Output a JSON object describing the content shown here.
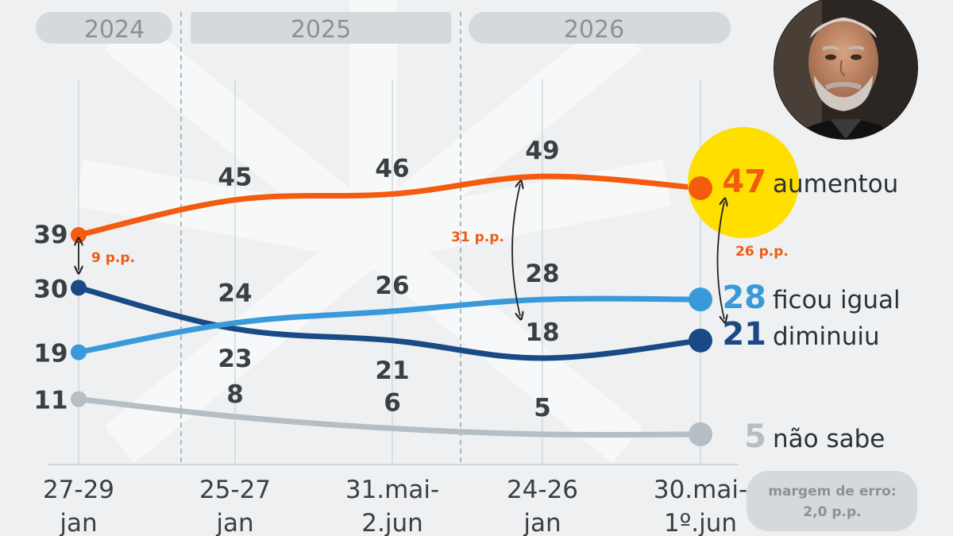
{
  "years": [
    "2024",
    "2025",
    "2026"
  ],
  "margin_note": {
    "line1": "margem de erro:",
    "line2": "2,0 p.p."
  },
  "colors": {
    "aumentou": "#f35b0f",
    "ficou_igual": "#3a9ad9",
    "diminuiu": "#1a4a86",
    "nao_sabe": "#b5bec4",
    "highlight": "#ffdf00",
    "pill": "#d4d9dc",
    "background": "#eef0f1"
  },
  "annotations": [
    {
      "text": "9 p.p.",
      "between": [
        "aumentou",
        "diminuiu"
      ],
      "at": "27-29 jan"
    },
    {
      "text": "31 p.p.",
      "between": [
        "aumentou",
        "diminuiu"
      ],
      "at": "24-26 jan"
    },
    {
      "text": "26 p.p.",
      "between": [
        "aumentou",
        "diminuiu"
      ],
      "at": "30.mai-1º.jun"
    }
  ],
  "photo": {
    "icon": "person-photo"
  },
  "chart_data": {
    "type": "line",
    "categories": [
      {
        "line1": "27-29",
        "line2": "jan",
        "year": "2024"
      },
      {
        "line1": "25-27",
        "line2": "jan",
        "year": "2025"
      },
      {
        "line1": "31.mai-",
        "line2": "2.jun",
        "year": "2025"
      },
      {
        "line1": "24-26",
        "line2": "jan",
        "year": "2026"
      },
      {
        "line1": "30.mai-",
        "line2": "1º.jun",
        "year": "2026"
      }
    ],
    "series": [
      {
        "key": "aumentou",
        "name": "aumentou",
        "values": [
          39,
          45,
          46,
          49,
          47
        ]
      },
      {
        "key": "ficou_igual",
        "name": "ficou igual",
        "values": [
          19,
          24,
          26,
          28,
          28
        ]
      },
      {
        "key": "diminuiu",
        "name": "diminuiu",
        "values": [
          30,
          23,
          21,
          18,
          21
        ]
      },
      {
        "key": "nao_sabe",
        "name": "não sabe",
        "values": [
          11,
          8,
          6,
          5,
          5
        ]
      }
    ],
    "grid": false,
    "legend": "right, at line ends"
  }
}
